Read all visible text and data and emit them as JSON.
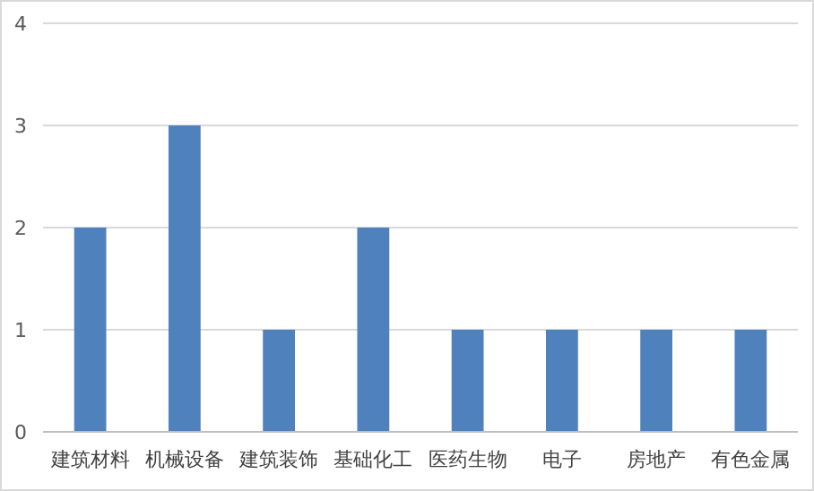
{
  "chart_data": {
    "type": "bar",
    "categories": [
      "建筑材料",
      "机械设备",
      "建筑装饰",
      "基础化工",
      "医药生物",
      "电子",
      "房地产",
      "有色金属"
    ],
    "values": [
      2,
      3,
      1,
      2,
      1,
      1,
      1,
      1
    ],
    "color": "#4f81bd",
    "ylim": [
      0,
      4
    ],
    "yticks": [
      0,
      1,
      2,
      3,
      4
    ],
    "grid": "y"
  }
}
